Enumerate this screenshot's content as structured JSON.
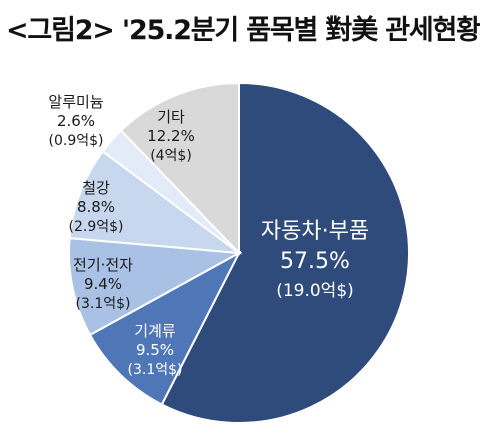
{
  "title": "<그림2> '25.2분기 품목별 對美 관세현황",
  "chart_data": {
    "type": "pie",
    "title": "<그림2> '25.2분기 품목별 對美 관세현황",
    "slices": [
      {
        "label": "자동차·부품",
        "percent": 57.5,
        "percent_text": "57.5%",
        "amount_text": "(19.0억$)",
        "color": "#2f4b7c",
        "text_color": "#ffffff"
      },
      {
        "label": "기계류",
        "percent": 9.5,
        "percent_text": "9.5%",
        "amount_text": "(3.1억$)",
        "color": "#4f77b8",
        "text_color": "#ffffff"
      },
      {
        "label": "전기·전자",
        "percent": 9.4,
        "percent_text": "9.4%",
        "amount_text": "(3.1억$)",
        "color": "#a9c1e4",
        "text_color": "#1a1a1a"
      },
      {
        "label": "철강",
        "percent": 8.8,
        "percent_text": "8.8%",
        "amount_text": "(2.9억$)",
        "color": "#c6d7ee",
        "text_color": "#1a1a1a"
      },
      {
        "label": "알루미늄",
        "percent": 2.6,
        "percent_text": "2.6%",
        "amount_text": "(0.9억$)",
        "color": "#e2ebf7",
        "text_color": "#1a1a1a"
      },
      {
        "label": "기타",
        "percent": 12.2,
        "percent_text": "12.2%",
        "amount_text": "(4억$)",
        "color": "#d9d9d9",
        "text_color": "#1a1a1a"
      }
    ]
  }
}
